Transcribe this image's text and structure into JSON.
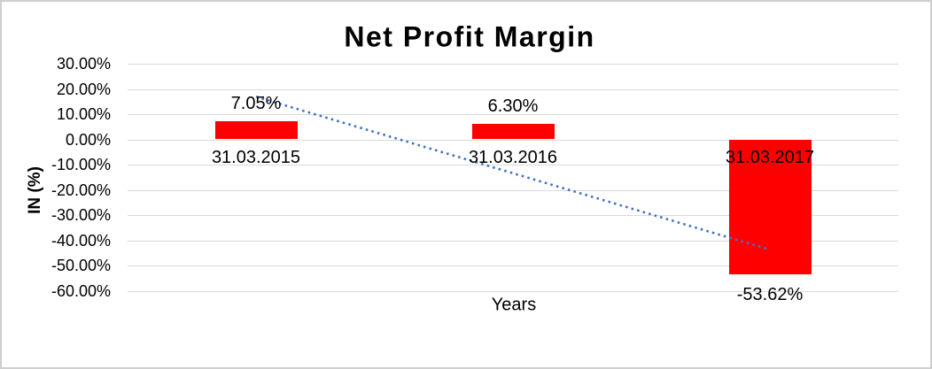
{
  "chart_data": {
    "type": "bar",
    "title": "Net Profit Margin",
    "xlabel": "Years",
    "ylabel": "IN (%)",
    "categories": [
      "31.03.2015",
      "31.03.2016",
      "31.03.2017"
    ],
    "values": [
      7.05,
      6.3,
      -53.62
    ],
    "value_labels": [
      "7.05%",
      "6.30%",
      "-53.62%"
    ],
    "ylim": [
      -60,
      30
    ],
    "yticks": [
      {
        "value": 30,
        "label": "30.00%"
      },
      {
        "value": 20,
        "label": "20.00%"
      },
      {
        "value": 10,
        "label": "10.00%"
      },
      {
        "value": 0,
        "label": "0.00%"
      },
      {
        "value": -10,
        "label": "-10.00%"
      },
      {
        "value": -20,
        "label": "-20.00%"
      },
      {
        "value": -30,
        "label": "-30.00%"
      },
      {
        "value": -40,
        "label": "-40.00%"
      },
      {
        "value": -50,
        "label": "-50.00%"
      },
      {
        "value": -60,
        "label": "-60.00%"
      }
    ],
    "grid": true,
    "legend": "none",
    "trendline": {
      "type": "linear",
      "style": "dotted"
    }
  },
  "colors": {
    "bar": "#ff0000",
    "trendline": "#4472c4",
    "gridline": "#d9d9d9",
    "text": "#000000",
    "border": "#cfcfcf",
    "background": "#ffffff"
  }
}
